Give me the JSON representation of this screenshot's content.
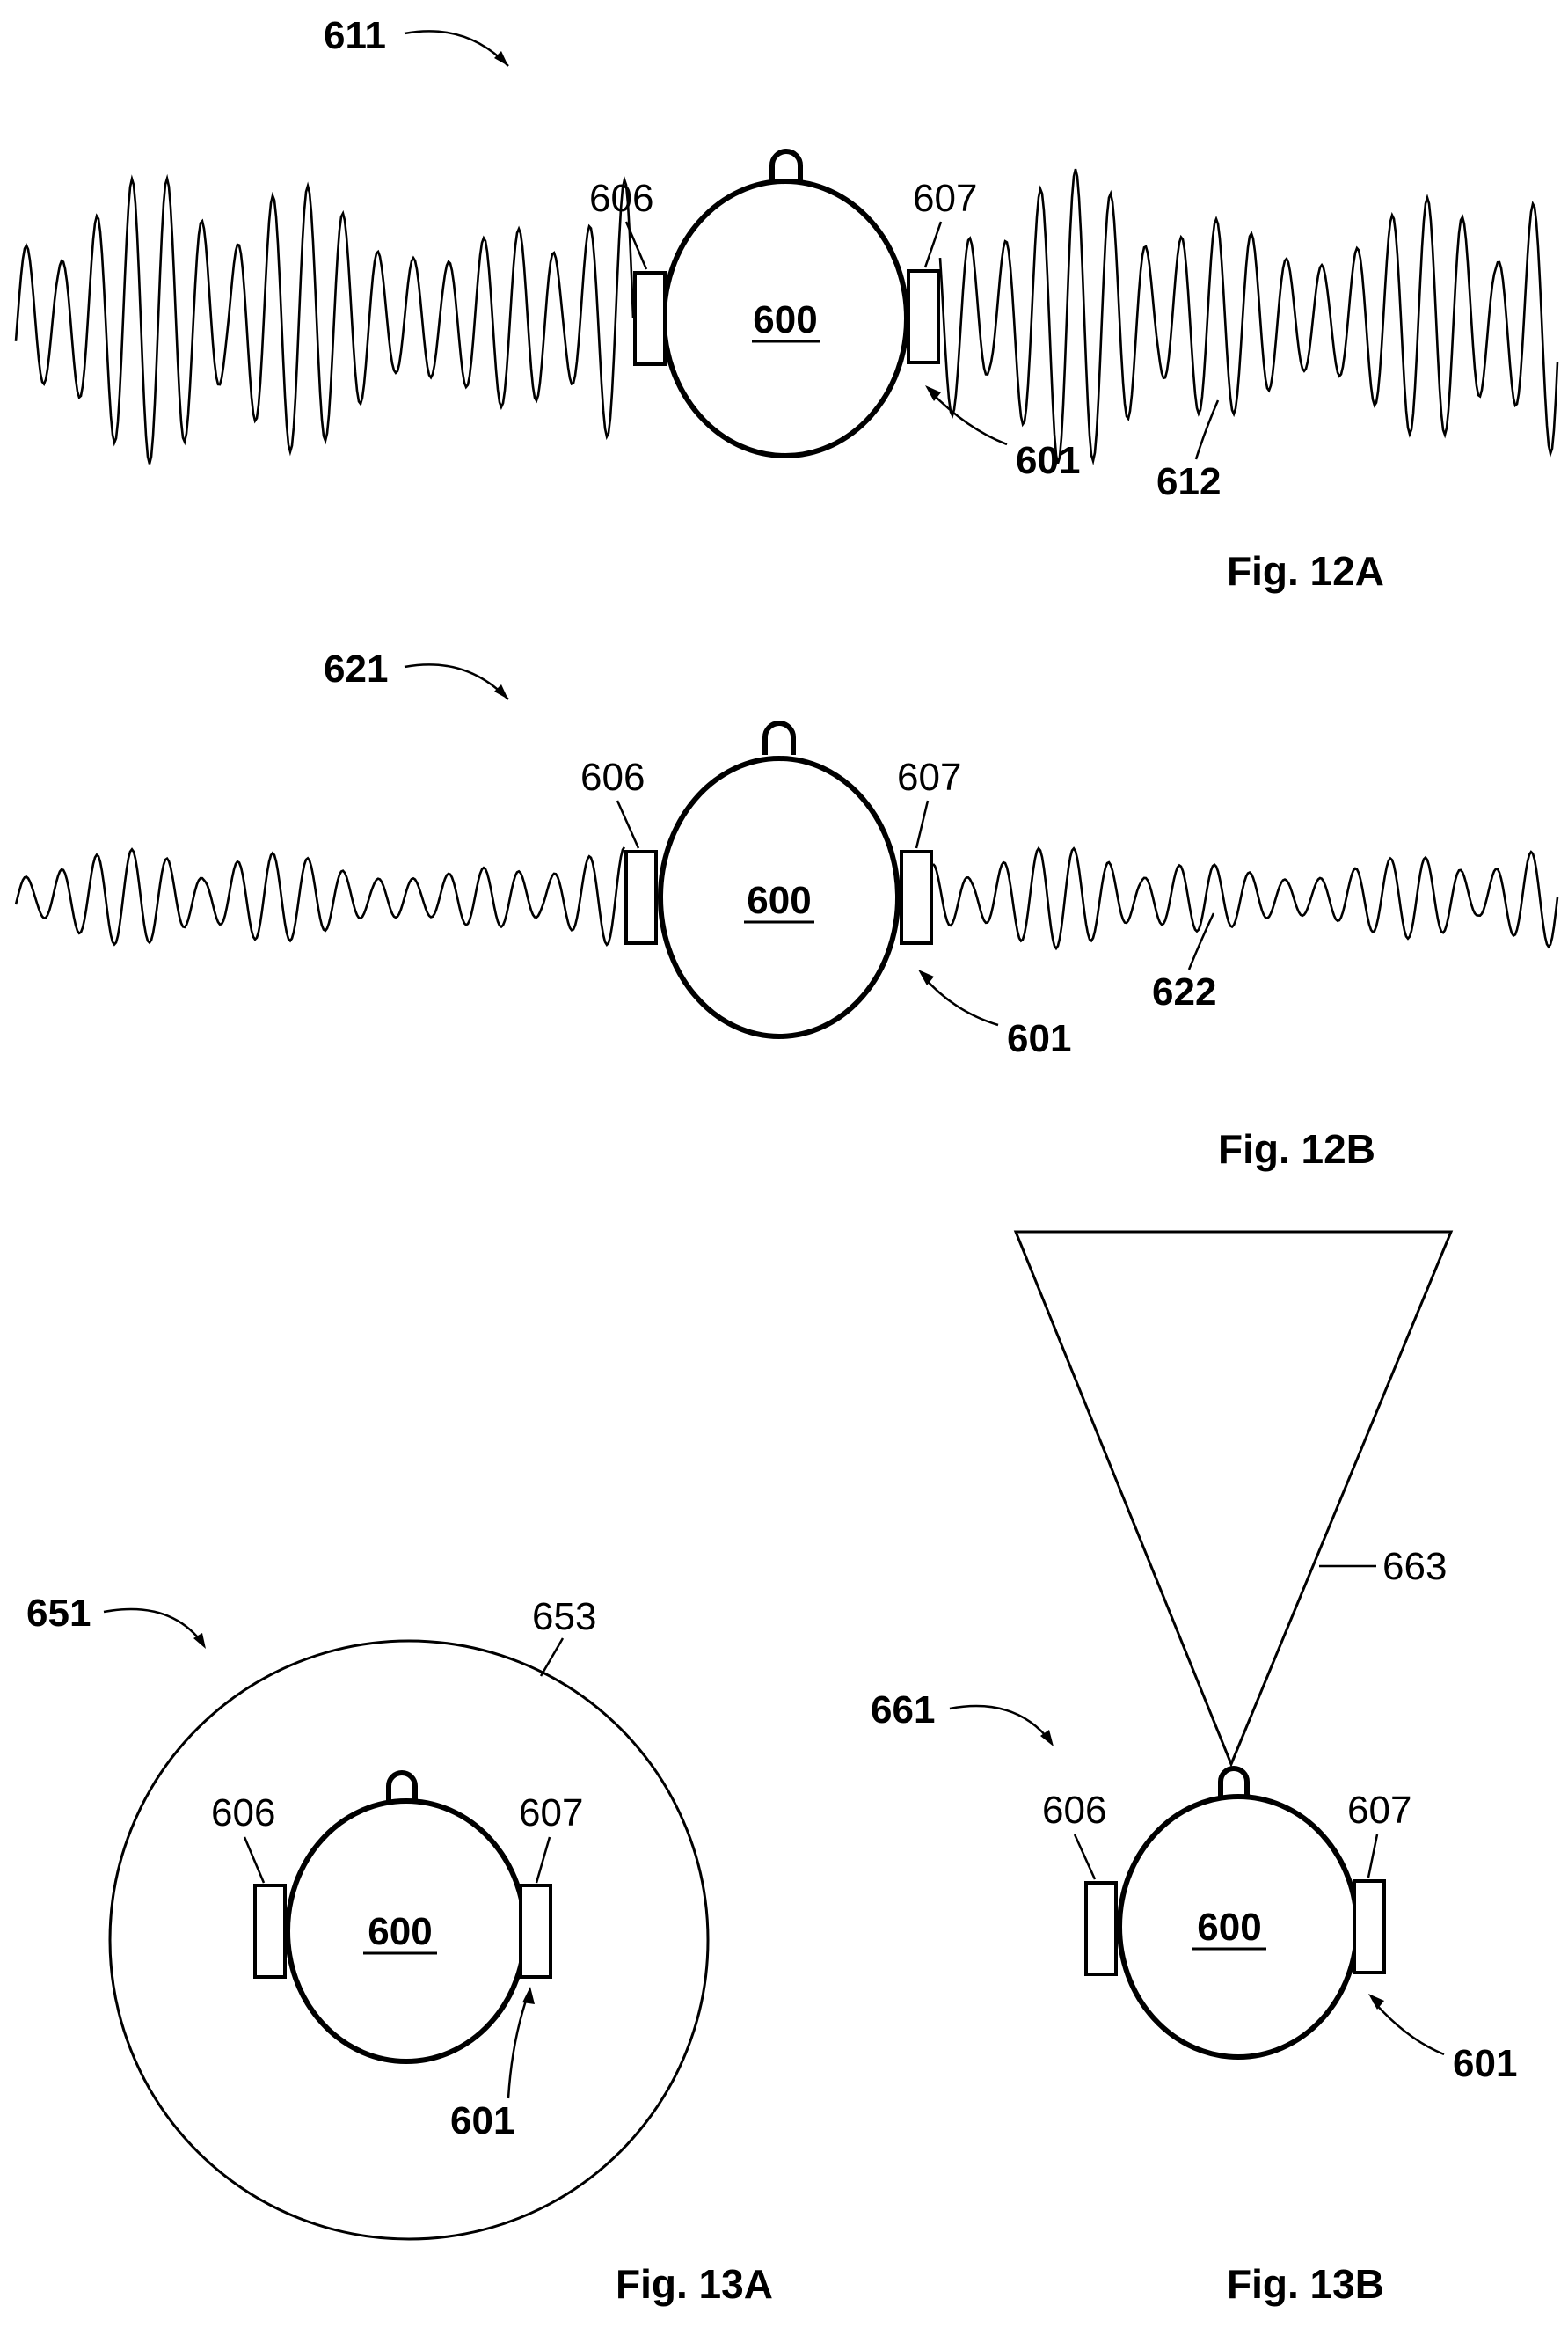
{
  "figures": {
    "fig12a": {
      "caption": "Fig. 12A",
      "ref_scene": "611",
      "ref_head": "600",
      "ref_left_device": "606",
      "ref_right_device": "607",
      "ref_arrow": "601",
      "ref_sound": "612"
    },
    "fig12b": {
      "caption": "Fig. 12B",
      "ref_scene": "621",
      "ref_head": "600",
      "ref_left_device": "606",
      "ref_right_device": "607",
      "ref_arrow": "601",
      "ref_sound": "622"
    },
    "fig13a": {
      "caption": "Fig. 13A",
      "ref_scene": "651",
      "ref_zone": "653",
      "ref_head": "600",
      "ref_left_device": "606",
      "ref_right_device": "607",
      "ref_arrow": "601"
    },
    "fig13b": {
      "caption": "Fig. 13B",
      "ref_scene": "661",
      "ref_zone": "663",
      "ref_head": "600",
      "ref_left_device": "606",
      "ref_right_device": "607",
      "ref_arrow": "601"
    }
  },
  "colors": {
    "ink": "#000000",
    "paper": "#ffffff"
  }
}
